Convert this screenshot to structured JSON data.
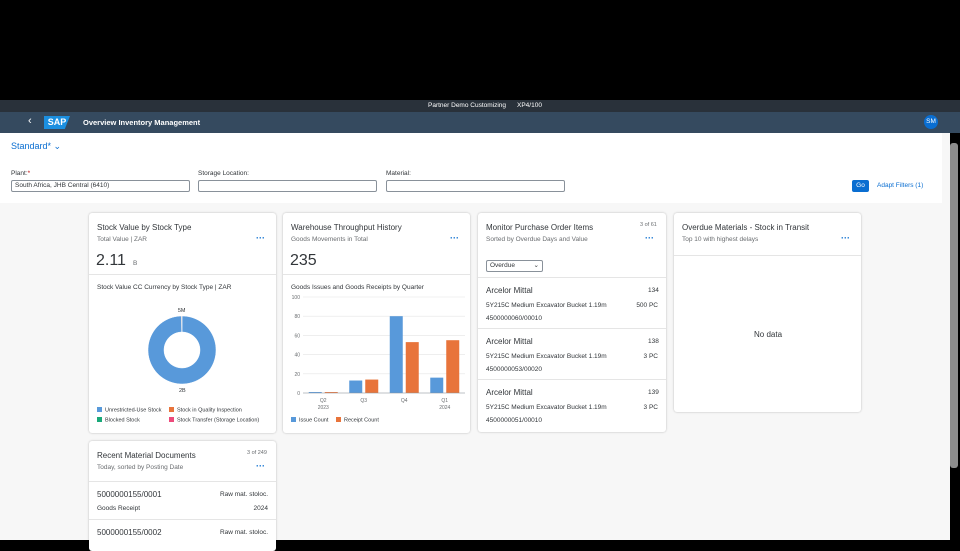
{
  "shell": {
    "system": "Partner Demo Customizing",
    "client": "XP4/100",
    "logo": "SAP",
    "app_title": "Overview Inventory Management",
    "avatar": "SM"
  },
  "variant": {
    "name": "Standard",
    "modified": "*"
  },
  "filters": [
    {
      "label": "Plant:",
      "required": "*",
      "value": "South Africa, JHB Central (6410)"
    },
    {
      "label": "Storage Location:",
      "value": ""
    },
    {
      "label": "Material:",
      "value": ""
    }
  ],
  "buttons": {
    "go": "Go",
    "adapt": "Adapt Filters (1)"
  },
  "cards": [
    {
      "title": "Stock Value by Stock Type",
      "subtitle": "Total Value | ZAR",
      "kpi": "2.11",
      "kpi_unit": "B",
      "chart_data": {
        "type": "pie",
        "title": "Stock Value CC Currency by Stock Type | ZAR",
        "donut": true,
        "categories": [
          "Unrestricted-Use Stock",
          "Stock in Quality Inspection",
          "Blocked Stock",
          "Stock Transfer (Storage Location)"
        ],
        "values": [
          2000,
          5,
          0,
          0
        ],
        "value_labels": [
          "2B",
          "5M",
          null,
          null
        ],
        "colors": [
          "#5899da",
          "#e8743b",
          "#19a979",
          "#ed4a7b"
        ]
      }
    },
    {
      "title": "Warehouse Throughput History",
      "subtitle": "Goods Movements in Total",
      "kpi": "235",
      "chart_data": {
        "type": "bar",
        "title": "Goods Issues and Goods Receipts by Quarter",
        "categories": [
          "Q2",
          "Q3",
          "Q4",
          "Q1"
        ],
        "years": [
          "2023",
          null,
          null,
          "2024"
        ],
        "series": [
          {
            "name": "Issue Count",
            "color": "#5899da",
            "values": [
              1,
              13,
              80,
              16
            ]
          },
          {
            "name": "Receipt Count",
            "color": "#e8743b",
            "values": [
              1,
              14,
              53,
              55
            ]
          }
        ],
        "ylim": [
          0,
          100
        ],
        "yticks": [
          0,
          20,
          40,
          60,
          80,
          100
        ],
        "grid": true
      }
    },
    {
      "title": "Monitor Purchase Order Items",
      "count": "3 of 61",
      "subtitle": "Sorted by Overdue Days and Value",
      "select": "Overdue",
      "items": [
        {
          "vendor": "Arcelor Mittal",
          "days": "134",
          "material": "5Y215C Medium Excavator Bucket 1.19m",
          "qty": "500 PC",
          "doc": "4500000060/00010"
        },
        {
          "vendor": "Arcelor Mittal",
          "days": "138",
          "material": "5Y215C Medium Excavator Bucket 1.19m",
          "qty": "3 PC",
          "doc": "4500000053/00020"
        },
        {
          "vendor": "Arcelor Mittal",
          "days": "139",
          "material": "5Y215C Medium Excavator Bucket 1.19m",
          "qty": "3 PC",
          "doc": "4500000051/00010"
        }
      ]
    },
    {
      "title": "Overdue Materials - Stock in Transit",
      "subtitle": "Top 10 with highest delays",
      "empty": "No data"
    },
    {
      "title": "Recent Material Documents",
      "count": "3 of 249",
      "subtitle": "Today, sorted by Posting Date",
      "items": [
        {
          "doc": "5000000155/0001",
          "type": "Raw mat. stoloc.",
          "movement": "Goods Receipt",
          "year": "2024"
        },
        {
          "doc": "5000000155/0002",
          "type": "Raw mat. stoloc."
        }
      ]
    }
  ]
}
